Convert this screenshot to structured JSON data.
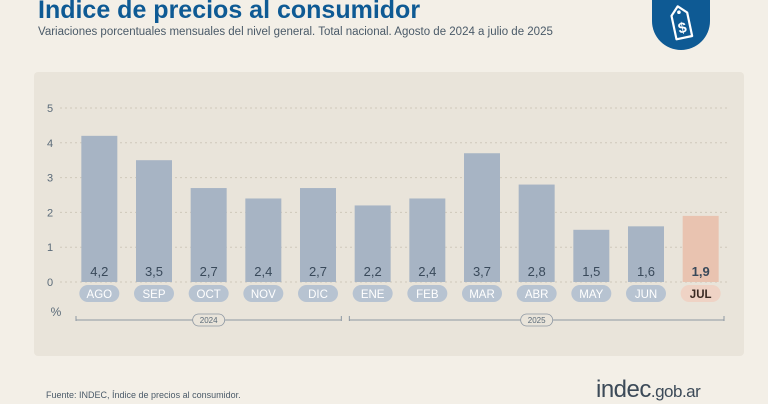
{
  "header": {
    "title": "Índice de precios al consumidor",
    "subtitle": "Variaciones porcentuales mensuales del nivel general. Total nacional. Agosto de 2024 a julio de 2025"
  },
  "badge": {
    "icon": "price-tag-dollar-icon"
  },
  "chart_data": {
    "type": "bar",
    "title": "Índice de precios al consumidor",
    "subtitle": "Variaciones porcentuales mensuales del nivel general. Total nacional. Agosto de 2024 a julio de 2025",
    "ylabel": "%",
    "ylim": [
      0,
      5
    ],
    "yticks": [
      "0",
      "1",
      "2",
      "3",
      "4",
      "5"
    ],
    "grid": true,
    "categories": [
      "AGO",
      "SEP",
      "OCT",
      "NOV",
      "DIC",
      "ENE",
      "FEB",
      "MAR",
      "ABR",
      "MAY",
      "JUN",
      "JUL"
    ],
    "values": [
      4.2,
      3.5,
      2.7,
      2.4,
      2.7,
      2.2,
      2.4,
      3.7,
      2.8,
      1.5,
      1.6,
      1.9
    ],
    "value_labels": [
      "4,2",
      "3,5",
      "2,7",
      "2,4",
      "2,7",
      "2,2",
      "2,4",
      "3,7",
      "2,8",
      "1,5",
      "1,6",
      "1,9"
    ],
    "highlight_index": 11,
    "groups": [
      {
        "label": "2024",
        "start": 0,
        "end": 4
      },
      {
        "label": "2025",
        "start": 5,
        "end": 11
      }
    ],
    "colors": {
      "bar": "#a7b4c4",
      "highlight": "#e9c3b0",
      "tick_pill": "#b7c3d1",
      "highlight_pill": "#efd3c5",
      "value_text": "#39495a"
    }
  },
  "footer": {
    "source": "Fuente: INDEC, Índice de precios al consumidor.",
    "logo_main": "indec",
    "logo_suffix": ".gob.ar"
  }
}
